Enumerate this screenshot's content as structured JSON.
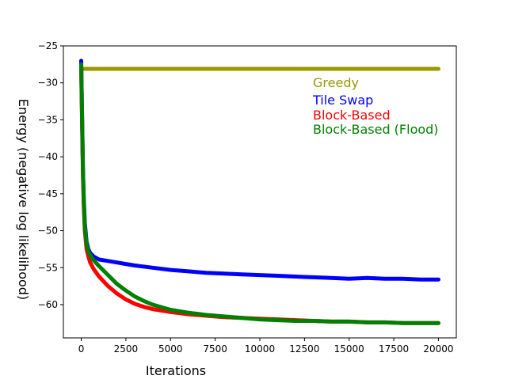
{
  "chart_data": {
    "type": "line",
    "xlabel": "Iterations",
    "ylabel": "Energy (negative log likelihood)",
    "xlim": [
      -1000,
      21000
    ],
    "ylim": [
      -64.5,
      -25
    ],
    "x_ticks": [
      0,
      2500,
      5000,
      7500,
      10000,
      12500,
      15000,
      17500,
      20000
    ],
    "x_tick_labels": [
      "0",
      "2500",
      "5000",
      "7500",
      "10000",
      "12500",
      "15000",
      "17500",
      "20000"
    ],
    "y_ticks": [
      -25,
      -30,
      -35,
      -40,
      -45,
      -50,
      -55,
      -60
    ],
    "y_tick_labels": [
      "−25",
      "−30",
      "−35",
      "−40",
      "−45",
      "−50",
      "−55",
      "−60"
    ],
    "grid": false,
    "legend_position": "upper right",
    "series": [
      {
        "name": "Greedy",
        "color": "#999900",
        "x": [
          0,
          20000
        ],
        "y": [
          -28.1,
          -28.1
        ]
      },
      {
        "name": "Tile Swap",
        "color": "#0000ff",
        "x": [
          0,
          50,
          100,
          150,
          200,
          300,
          400,
          500,
          700,
          1000,
          1500,
          2000,
          2500,
          3000,
          4000,
          5000,
          6000,
          7000,
          8000,
          9000,
          10000,
          11000,
          12000,
          13000,
          14000,
          15000,
          16000,
          17000,
          18000,
          19000,
          20000
        ],
        "y": [
          -27,
          -35,
          -42,
          -46,
          -49,
          -51.5,
          -52.5,
          -53,
          -53.5,
          -53.9,
          -54.1,
          -54.3,
          -54.5,
          -54.7,
          -55.0,
          -55.3,
          -55.5,
          -55.7,
          -55.8,
          -55.9,
          -56.0,
          -56.1,
          -56.2,
          -56.3,
          -56.4,
          -56.5,
          -56.4,
          -56.5,
          -56.5,
          -56.6,
          -56.6
        ]
      },
      {
        "name": "Block-Based",
        "color": "#ff0000",
        "x": [
          0,
          50,
          100,
          150,
          200,
          300,
          400,
          500,
          700,
          1000,
          1500,
          2000,
          2500,
          3000,
          3500,
          4000,
          5000,
          6000,
          7000,
          8000,
          9000,
          10000,
          11000,
          12000,
          13000,
          14000,
          15000,
          16000,
          17000,
          18000,
          19000,
          20000
        ],
        "y": [
          -28,
          -36,
          -43,
          -47,
          -50,
          -52.5,
          -53.5,
          -54.3,
          -55.2,
          -56.2,
          -57.5,
          -58.5,
          -59.3,
          -59.9,
          -60.3,
          -60.6,
          -61.0,
          -61.3,
          -61.5,
          -61.7,
          -61.8,
          -61.9,
          -62.0,
          -62.1,
          -62.2,
          -62.3,
          -62.3,
          -62.4,
          -62.4,
          -62.5,
          -62.5,
          -62.5
        ]
      },
      {
        "name": "Block-Based (Flood)",
        "color": "#008000",
        "x": [
          0,
          50,
          100,
          150,
          200,
          300,
          400,
          500,
          700,
          1000,
          1500,
          2000,
          2500,
          3000,
          3500,
          4000,
          5000,
          6000,
          7000,
          8000,
          9000,
          10000,
          11000,
          12000,
          13000,
          14000,
          15000,
          16000,
          17000,
          18000,
          19000,
          20000
        ],
        "y": [
          -27.5,
          -35.5,
          -42.5,
          -46.5,
          -49.5,
          -51.8,
          -52.8,
          -53.3,
          -54.0,
          -54.8,
          -56.0,
          -57.2,
          -58.1,
          -58.9,
          -59.5,
          -60.0,
          -60.7,
          -61.1,
          -61.4,
          -61.6,
          -61.8,
          -62.0,
          -62.1,
          -62.2,
          -62.2,
          -62.3,
          -62.3,
          -62.4,
          -62.4,
          -62.5,
          -62.5,
          -62.5
        ]
      }
    ]
  }
}
